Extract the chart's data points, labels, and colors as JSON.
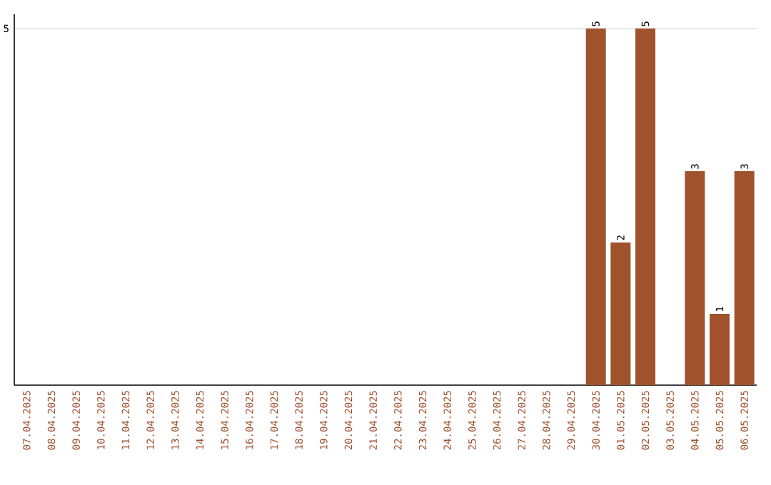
{
  "chart_data": {
    "type": "bar",
    "categories": [
      "07.04.2025",
      "08.04.2025",
      "09.04.2025",
      "10.04.2025",
      "11.04.2025",
      "12.04.2025",
      "13.04.2025",
      "14.04.2025",
      "15.04.2025",
      "16.04.2025",
      "17.04.2025",
      "18.04.2025",
      "19.04.2025",
      "20.04.2025",
      "21.04.2025",
      "22.04.2025",
      "23.04.2025",
      "24.04.2025",
      "25.04.2025",
      "26.04.2025",
      "27.04.2025",
      "28.04.2025",
      "29.04.2025",
      "30.04.2025",
      "01.05.2025",
      "02.05.2025",
      "03.05.2025",
      "04.05.2025",
      "05.05.2025",
      "06.05.2025"
    ],
    "values": [
      null,
      null,
      null,
      null,
      null,
      null,
      null,
      null,
      null,
      null,
      null,
      null,
      null,
      null,
      null,
      null,
      null,
      null,
      null,
      null,
      null,
      null,
      null,
      5,
      2,
      5,
      null,
      3,
      1,
      3
    ],
    "data_labels": true,
    "color": "#a0522d",
    "ylim": [
      0,
      5.2
    ],
    "yticks": [
      5
    ],
    "grid": "y"
  }
}
